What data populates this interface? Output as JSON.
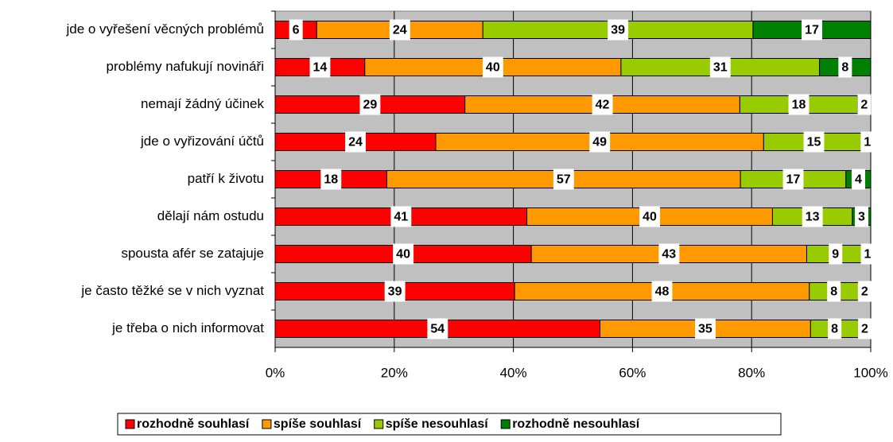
{
  "chart_data": {
    "type": "bar",
    "orientation": "horizontal",
    "stacked": "percent",
    "categories": [
      "jde o vyřešení věcných problémů",
      "problémy nafukují novináři",
      "nemají žádný účinek",
      "jde o vyřizování účtů",
      "patří k životu",
      "dělají nám ostudu",
      "spousta afér se zatajuje",
      "je často těžké se v nich vyznat",
      "je třeba o nich informovat"
    ],
    "series": [
      {
        "name": "rozhodně souhlasí",
        "color": "#ff0000",
        "values": [
          6,
          14,
          29,
          24,
          18,
          41,
          40,
          39,
          54
        ]
      },
      {
        "name": "spíše souhlasí",
        "color": "#ff9900",
        "values": [
          24,
          40,
          42,
          49,
          57,
          40,
          43,
          48,
          35
        ]
      },
      {
        "name": "spíše nesouhlasí",
        "color": "#99cc00",
        "values": [
          39,
          31,
          18,
          15,
          17,
          13,
          9,
          8,
          8
        ]
      },
      {
        "name": "rozhodně nesouhlasí",
        "color": "#008000",
        "values": [
          17,
          8,
          2,
          1,
          4,
          3,
          1,
          2,
          2
        ]
      }
    ],
    "xlim": [
      0,
      100
    ],
    "xticks": [
      {
        "value": 0,
        "label": "0%"
      },
      {
        "value": 20,
        "label": "20%"
      },
      {
        "value": 40,
        "label": "40%"
      },
      {
        "value": 60,
        "label": "60%"
      },
      {
        "value": 80,
        "label": "80%"
      },
      {
        "value": 100,
        "label": "100%"
      }
    ],
    "grid": true,
    "legend": "bottom"
  }
}
